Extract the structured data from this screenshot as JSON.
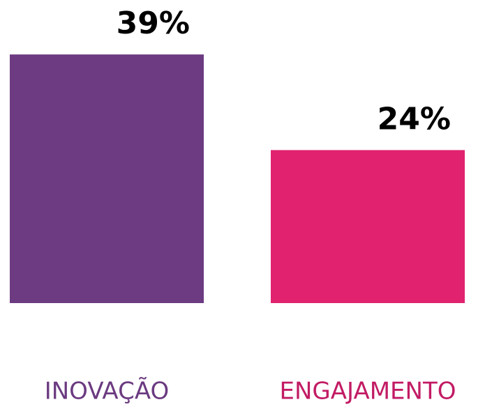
{
  "chart_data": {
    "type": "bar",
    "categories": [
      "INOVAÇÃO",
      "ENGAJAMENTO"
    ],
    "values": [
      39,
      24
    ],
    "value_labels": [
      "39%",
      "24%"
    ],
    "colors": [
      "#6c3b82",
      "#e0226f"
    ],
    "category_label_colors": [
      "#6b3a80",
      "#c21b64"
    ]
  }
}
